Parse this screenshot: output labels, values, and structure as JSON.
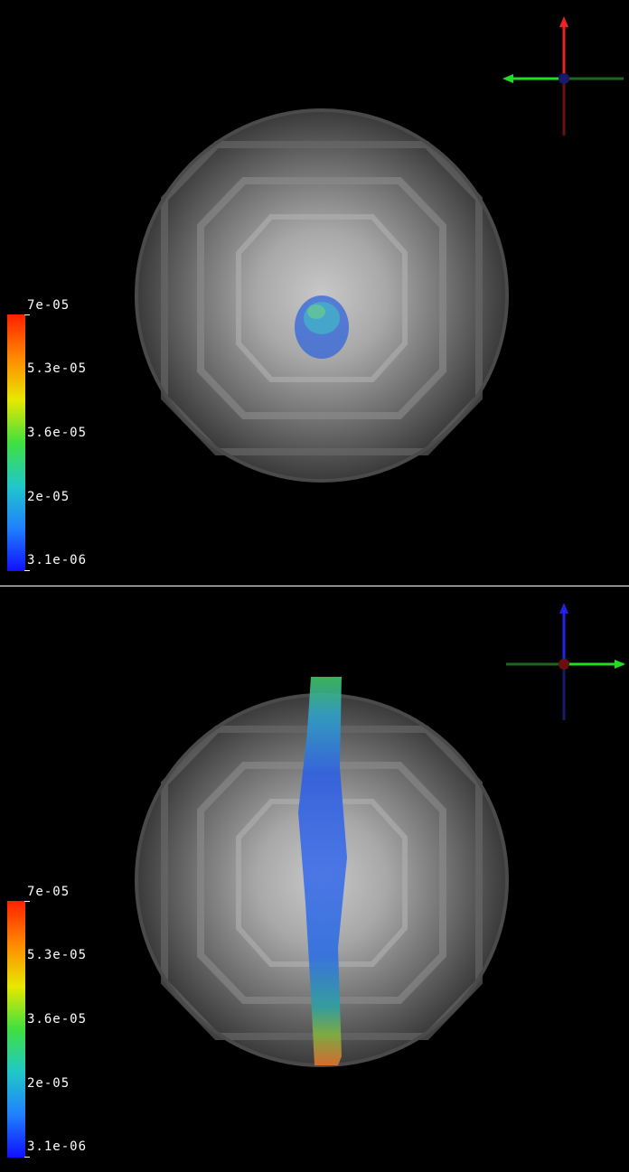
{
  "views": [
    {
      "id": "top",
      "description_colorbar": "scalar legend",
      "axes_center_color": "#1a1a6a",
      "colorbar_labels": [
        "7e-05",
        "5.3e-05",
        "3.6e-05",
        "2e-05",
        "3.1e-06"
      ]
    },
    {
      "id": "bottom",
      "axes_center_color": "#6a1010",
      "colorbar_labels": [
        "7e-05",
        "5.3e-05",
        "3.6e-05",
        "2e-05",
        "3.1e-06"
      ]
    }
  ],
  "colors": {
    "colormap": [
      "#ff2000",
      "#ff8800",
      "#e8e800",
      "#40e040",
      "#20c8c8",
      "#2080ff",
      "#1010ff"
    ],
    "sphere": "#8a8a8a",
    "x_axis": "#22dd22",
    "y_axis_top": "#ee2222",
    "z_axis_bottom": "#2222ee"
  }
}
